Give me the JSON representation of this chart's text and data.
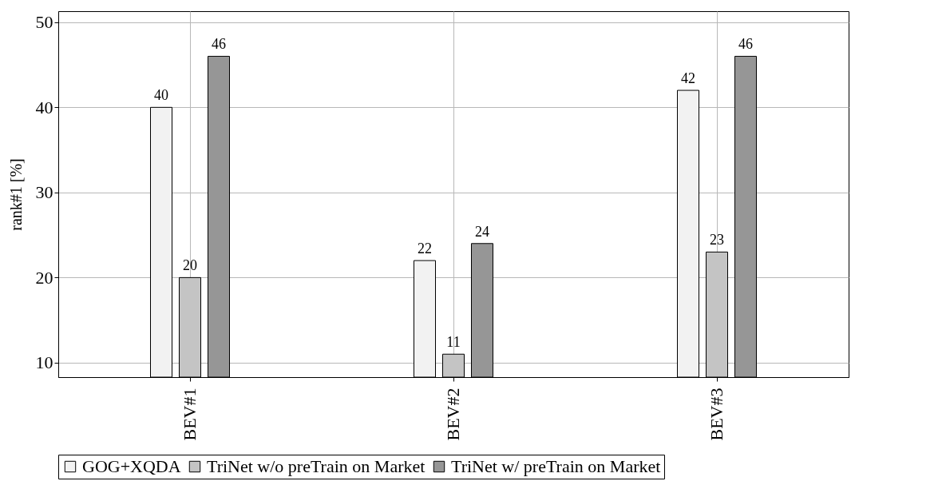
{
  "chart_data": {
    "type": "bar",
    "ylabel": "rank#1 [%]",
    "categories": [
      "BEV#1",
      "BEV#2",
      "BEV#3"
    ],
    "series": [
      {
        "name": "GOG+XQDA",
        "color": "#f2f2f2",
        "values": [
          40,
          22,
          42
        ]
      },
      {
        "name": "TriNet w/o preTrain on Market",
        "color": "#c4c4c4",
        "values": [
          20,
          11,
          23
        ]
      },
      {
        "name": "TriNet w/ preTrain on Market",
        "color": "#969696",
        "values": [
          46,
          24,
          46
        ]
      }
    ],
    "ylim": [
      8.3,
      51.3
    ],
    "yticks": [
      10,
      20,
      30,
      40,
      50
    ],
    "grid": true,
    "legend": "bottom",
    "data_labels": true
  }
}
